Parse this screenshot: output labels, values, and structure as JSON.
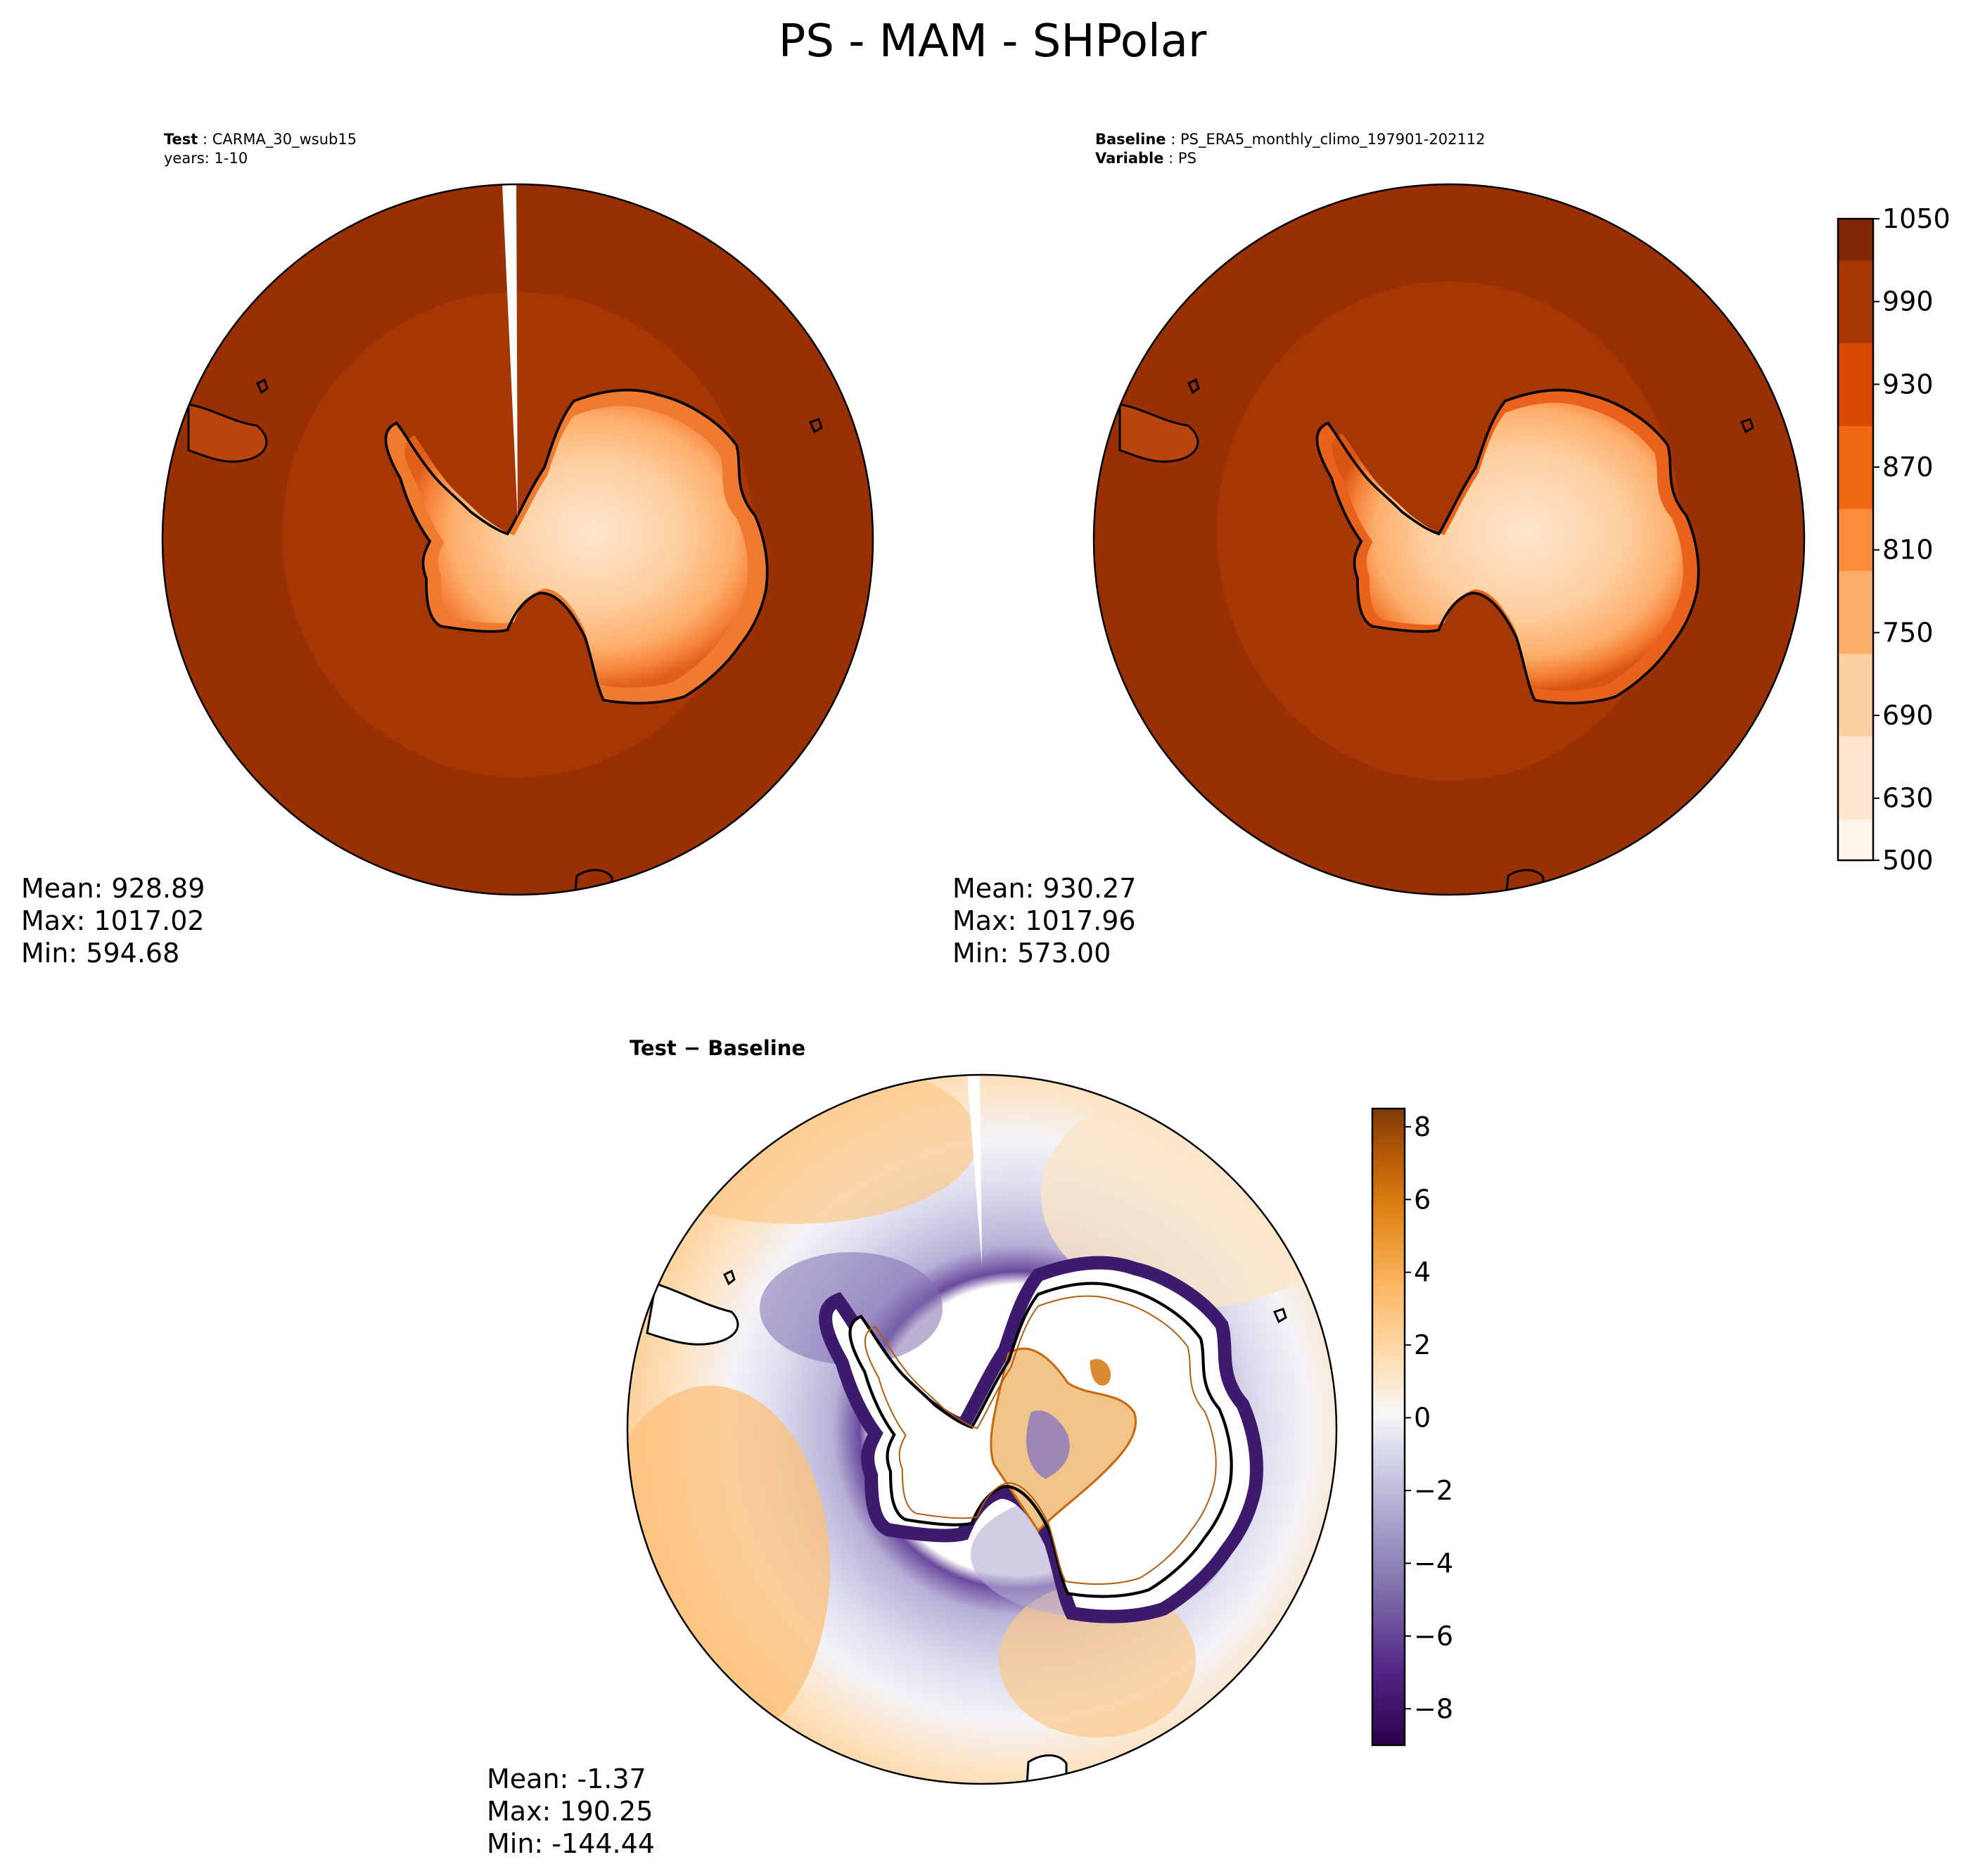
{
  "figure": {
    "title": "PS - MAM - SHPolar"
  },
  "chart_data": [
    {
      "type": "heatmap",
      "id": "test",
      "projection": "south-polar-stereographic",
      "header": [
        {
          "key": "Test",
          "value": "CARMA_30_wsub15"
        },
        {
          "key": "",
          "value": "years: 1-10"
        }
      ],
      "stats": {
        "mean": "Mean: 928.89",
        "max": "Max: 1017.02",
        "min": "Min: 594.68"
      },
      "colormap": "Oranges",
      "values": {
        "ocean_outer": 990,
        "ocean_inner": 965,
        "ice_sheet_min": 594.68,
        "mean": 928.89,
        "max": 1017.02
      }
    },
    {
      "type": "heatmap",
      "id": "baseline",
      "projection": "south-polar-stereographic",
      "header": [
        {
          "key": "Baseline",
          "value": "PS_ERA5_monthly_climo_197901-202112"
        },
        {
          "key": "Variable",
          "value": "PS"
        }
      ],
      "stats": {
        "mean": "Mean: 930.27",
        "max": "Max: 1017.96",
        "min": "Min: 573.00"
      },
      "colormap": "Oranges",
      "values": {
        "ocean_outer": 990,
        "ocean_inner": 965,
        "ice_sheet_min": 573.0,
        "mean": 930.27,
        "max": 1017.96
      },
      "colorbar": {
        "range": [
          500,
          1050
        ],
        "levels": [
          500,
          600,
          615,
          630,
          645,
          660,
          675,
          690,
          705,
          720,
          735,
          750,
          765,
          780,
          795,
          810,
          825,
          840,
          855,
          870,
          885,
          900,
          915,
          930,
          945,
          960,
          975,
          990,
          1005,
          1020,
          1035,
          1050
        ],
        "ticks": [
          "500",
          "630",
          "690",
          "750",
          "810",
          "870",
          "930",
          "990",
          "1050"
        ]
      }
    },
    {
      "type": "heatmap",
      "id": "diff",
      "projection": "south-polar-stereographic",
      "header": [
        {
          "key": "Test − Baseline",
          "value": ""
        }
      ],
      "stats": {
        "mean": "Mean: -1.37",
        "max": "Max: 190.25",
        "min": "Min: -144.44"
      },
      "colormap": "PuOr_r",
      "colorbar": {
        "range": [
          -9,
          8.5
        ],
        "ticks": [
          "−8",
          "−6",
          "−4",
          "−2",
          "0",
          "2",
          "4",
          "6",
          "8"
        ]
      }
    }
  ],
  "colors": {
    "oranges": [
      "#fff5eb",
      "#fee6ce",
      "#fdd0a2",
      "#fdae6b",
      "#fd8d3c",
      "#f16913",
      "#d94801",
      "#a63603",
      "#7f2704"
    ],
    "puor": [
      "#2d004b",
      "#542788",
      "#8073ac",
      "#b2abd2",
      "#d8daeb",
      "#f7f7f7",
      "#fee0b6",
      "#fdb863",
      "#e08214",
      "#b35806",
      "#7f3b08"
    ],
    "coast": "#000000"
  }
}
